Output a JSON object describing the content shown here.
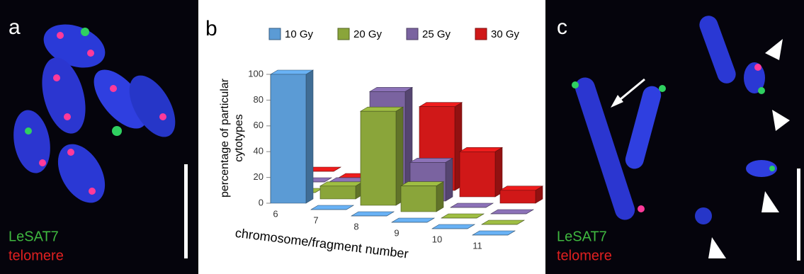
{
  "panel_a": {
    "label": "a",
    "legend": [
      "LeSAT7",
      "telomere"
    ]
  },
  "panel_c": {
    "label": "c",
    "legend": [
      "LeSAT7",
      "telomere"
    ]
  },
  "chart_data": {
    "type": "bar3d",
    "panel_label": "b",
    "y_label": [
      "percentage of particular",
      "cytotypes"
    ],
    "x_label": "chromosome/fragment number",
    "categories": [
      "6",
      "7",
      "8",
      "9",
      "10",
      "11"
    ],
    "series": [
      {
        "name": "10 Gy",
        "color": "#5b9bd5",
        "values": [
          100,
          0,
          0,
          0,
          0,
          0
        ]
      },
      {
        "name": "20 Gy",
        "color": "#8aa53a",
        "values": [
          0,
          10,
          73,
          20,
          0,
          0
        ]
      },
      {
        "name": "25 Gy",
        "color": "#7a63a0",
        "values": [
          0,
          5,
          80,
          30,
          0,
          0
        ]
      },
      {
        "name": "30 Gy",
        "color": "#d01818",
        "values": [
          0,
          0,
          10,
          65,
          35,
          10
        ]
      }
    ],
    "ylim": [
      0,
      100
    ],
    "yticks": [
      0,
      20,
      40,
      60,
      80,
      100
    ]
  }
}
